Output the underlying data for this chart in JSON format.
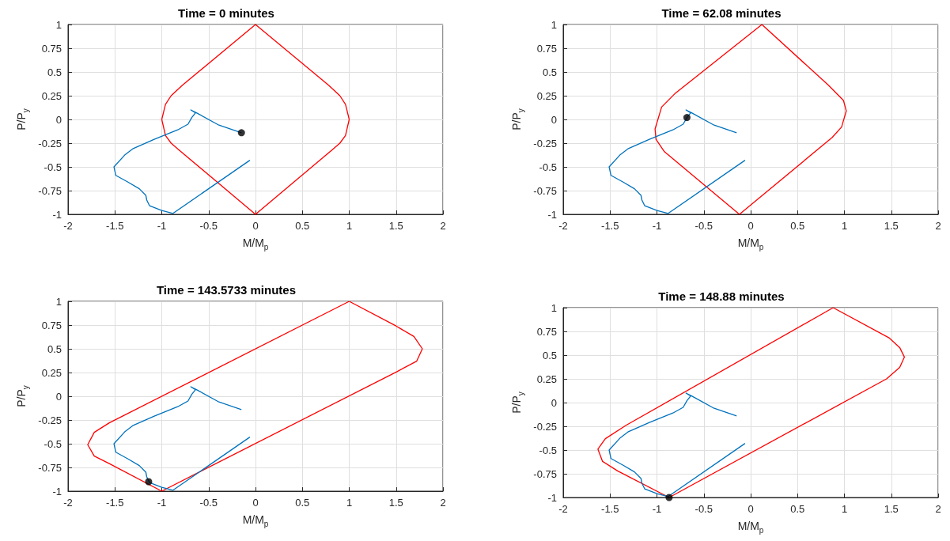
{
  "chart_data": [
    {
      "type": "line",
      "title": "Time = 0 minutes",
      "xlabel": "M/M$_{p}$",
      "ylabel": "P/P$_{y}$",
      "xlim": [
        -2,
        2
      ],
      "ylim": [
        -1,
        1
      ],
      "xticks": [
        -2,
        -1.5,
        -1,
        -0.5,
        0,
        0.5,
        1,
        1.5,
        2
      ],
      "yticks": [
        -1,
        -0.75,
        -0.5,
        -0.25,
        0,
        0.25,
        0.5,
        0.75,
        1
      ],
      "grid": true,
      "marker": "none",
      "line_style": "solid",
      "series": [
        {
          "color": "#ff0000",
          "x": [
            -1,
            -0.96,
            -0.9,
            -0.78,
            0,
            0.78,
            0.9,
            0.96,
            1
          ],
          "values": [
            0,
            0.16,
            0.25,
            0.36,
            1,
            0.36,
            0.25,
            0.16,
            0
          ]
        },
        {
          "color": "#ff0000",
          "x": [
            1,
            0.96,
            0.9,
            0.83,
            0,
            -0.83,
            -0.9,
            -0.96,
            -1
          ],
          "values": [
            0,
            -0.17,
            -0.25,
            -0.31,
            -1,
            -0.31,
            -0.25,
            -0.17,
            0
          ]
        },
        {
          "color": "#0072bd",
          "x": [
            -0.15,
            -0.39,
            -0.63,
            -0.69,
            -0.64,
            -0.68,
            -0.72,
            -0.83,
            -1.08,
            -1.31,
            -1.39,
            -1.51,
            -1.49,
            -1.36,
            -1.24,
            -1.17,
            -1.16,
            -1.13,
            -1,
            -0.88,
            -0.06
          ],
          "values": [
            -0.14,
            -0.06,
            0.07,
            0.1,
            0.07,
            0.02,
            -0.05,
            -0.11,
            -0.21,
            -0.31,
            -0.37,
            -0.5,
            -0.59,
            -0.66,
            -0.73,
            -0.8,
            -0.85,
            -0.91,
            -0.96,
            -0.99,
            -0.43
          ]
        },
        {
          "type": "scatter",
          "marker": "circle",
          "color": "#000000",
          "x": [
            -0.15
          ],
          "values": [
            -0.14
          ]
        }
      ]
    },
    {
      "type": "line",
      "title": "Time = 62.08 minutes",
      "xlabel": "M/M$_{p}$",
      "ylabel": "P/P$_{y}$",
      "xlim": [
        -2,
        2
      ],
      "ylim": [
        -1,
        1
      ],
      "xticks": [
        -2,
        -1.5,
        -1,
        -0.5,
        0,
        0.5,
        1,
        1.5,
        2
      ],
      "yticks": [
        -1,
        -0.75,
        -0.5,
        -0.25,
        0,
        0.25,
        0.5,
        0.75,
        1
      ],
      "grid": true,
      "marker": "none",
      "line_style": "solid",
      "series": [
        {
          "color": "#ff0000",
          "x": [
            0.12,
            -0.81,
            -0.95,
            -1.02,
            -1.01,
            -0.92,
            -0.12
          ],
          "values": [
            1,
            0.27,
            0.13,
            -0.1,
            -0.21,
            -0.34,
            -1
          ]
        },
        {
          "color": "#ff0000",
          "x": [
            -0.12,
            0.87,
            0.97,
            1.02,
            0.99,
            0.83,
            0.12
          ],
          "values": [
            -1,
            -0.19,
            -0.08,
            0.09,
            0.2,
            0.36,
            1
          ]
        },
        {
          "color": "#0072bd",
          "x": [
            -0.15,
            -0.39,
            -0.63,
            -0.69,
            -0.64,
            -0.68,
            -0.72,
            -0.83,
            -1.08,
            -1.31,
            -1.39,
            -1.51,
            -1.49,
            -1.36,
            -1.24,
            -1.17,
            -1.16,
            -1.13,
            -1,
            -0.88,
            -0.06
          ],
          "values": [
            -0.14,
            -0.06,
            0.07,
            0.1,
            0.07,
            0.02,
            -0.05,
            -0.11,
            -0.21,
            -0.31,
            -0.37,
            -0.5,
            -0.59,
            -0.66,
            -0.73,
            -0.8,
            -0.85,
            -0.91,
            -0.96,
            -0.99,
            -0.43
          ]
        },
        {
          "type": "scatter",
          "marker": "circle",
          "color": "#000000",
          "x": [
            -0.68
          ],
          "values": [
            0.02
          ]
        }
      ]
    },
    {
      "type": "line",
      "title": "Time = 143.5733 minutes",
      "xlabel": "M/M$_{p}$",
      "ylabel": "P/P$_{y}$",
      "xlim": [
        -2,
        2
      ],
      "ylim": [
        -1,
        1
      ],
      "xticks": [
        -2,
        -1.5,
        -1,
        -0.5,
        0,
        0.5,
        1,
        1.5,
        2
      ],
      "yticks": [
        -1,
        -0.75,
        -0.5,
        -0.25,
        0,
        0.25,
        0.5,
        0.75,
        1
      ],
      "grid": true,
      "marker": "none",
      "line_style": "solid",
      "series": [
        {
          "color": "#ff0000",
          "x": [
            1,
            -1.56,
            -1.72,
            -1.79,
            -1.72,
            -1.56,
            -1
          ],
          "values": [
            1,
            -0.28,
            -0.38,
            -0.51,
            -0.63,
            -0.71,
            -1
          ]
        },
        {
          "color": "#ff0000",
          "x": [
            -1,
            1.51,
            1.72,
            1.78,
            1.69,
            1.5,
            1
          ],
          "values": [
            -1,
            0.26,
            0.37,
            0.5,
            0.63,
            0.74,
            1
          ]
        },
        {
          "color": "#0072bd",
          "x": [
            -0.15,
            -0.39,
            -0.63,
            -0.69,
            -0.64,
            -0.68,
            -0.72,
            -0.83,
            -1.08,
            -1.31,
            -1.39,
            -1.51,
            -1.49,
            -1.36,
            -1.24,
            -1.17,
            -1.16,
            -1.13,
            -1,
            -0.88,
            -0.06
          ],
          "values": [
            -0.14,
            -0.06,
            0.07,
            0.1,
            0.07,
            0.02,
            -0.05,
            -0.11,
            -0.21,
            -0.31,
            -0.37,
            -0.5,
            -0.59,
            -0.66,
            -0.73,
            -0.8,
            -0.85,
            -0.91,
            -0.96,
            -0.99,
            -0.43
          ]
        },
        {
          "type": "scatter",
          "marker": "circle",
          "color": "#000000",
          "x": [
            -1.14
          ],
          "values": [
            -0.9
          ]
        }
      ]
    },
    {
      "type": "line",
      "title": "Time = 148.88 minutes",
      "xlabel": "M/M$_{p}$",
      "ylabel": "P/P$_{y}$",
      "xlim": [
        -2,
        2
      ],
      "ylim": [
        -1,
        1
      ],
      "xticks": [
        -2,
        -1.5,
        -1,
        -0.5,
        0,
        0.5,
        1,
        1.5,
        2
      ],
      "yticks": [
        -1,
        -0.75,
        -0.5,
        -0.25,
        0,
        0.25,
        0.5,
        0.75,
        1
      ],
      "grid": true,
      "marker": "none",
      "line_style": "solid",
      "series": [
        {
          "color": "#ff0000",
          "x": [
            0.88,
            -1.33,
            -1.55,
            -1.63,
            -1.58,
            -1.42,
            -0.87
          ],
          "values": [
            1,
            -0.24,
            -0.38,
            -0.49,
            -0.62,
            -0.72,
            -1
          ]
        },
        {
          "color": "#ff0000",
          "x": [
            -0.87,
            1.45,
            1.59,
            1.64,
            1.59,
            1.48,
            0.88
          ],
          "values": [
            -1,
            0.25,
            0.37,
            0.48,
            0.58,
            0.68,
            1
          ]
        },
        {
          "color": "#0072bd",
          "x": [
            -0.15,
            -0.39,
            -0.63,
            -0.69,
            -0.64,
            -0.68,
            -0.72,
            -0.83,
            -1.08,
            -1.31,
            -1.39,
            -1.51,
            -1.49,
            -1.36,
            -1.24,
            -1.17,
            -1.16,
            -1.13,
            -1,
            -0.88,
            -0.06
          ],
          "values": [
            -0.14,
            -0.06,
            0.07,
            0.1,
            0.07,
            0.02,
            -0.05,
            -0.11,
            -0.21,
            -0.31,
            -0.37,
            -0.5,
            -0.59,
            -0.66,
            -0.73,
            -0.8,
            -0.85,
            -0.91,
            -0.96,
            -0.99,
            -0.43
          ]
        },
        {
          "type": "scatter",
          "marker": "circle",
          "color": "#000000",
          "x": [
            -0.87
          ],
          "values": [
            -1
          ]
        }
      ]
    }
  ]
}
